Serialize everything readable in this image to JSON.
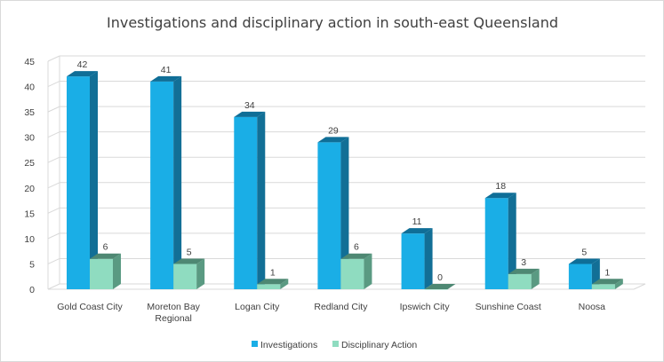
{
  "chart_data": {
    "type": "bar",
    "title": "Investigations and disciplinary action in south-east Queensland",
    "categories": [
      [
        "Gold Coast City"
      ],
      [
        "Moreton Bay",
        "Regional"
      ],
      [
        "Logan City"
      ],
      [
        "Redland City"
      ],
      [
        "Ipswich City"
      ],
      [
        "Sunshine Coast"
      ],
      [
        "Noosa"
      ]
    ],
    "series": [
      {
        "name": "Investigations",
        "values": [
          42,
          41,
          34,
          29,
          11,
          18,
          5
        ],
        "color": "#1aaee6",
        "side_color": "#126f96",
        "top_color": "#0f6e97"
      },
      {
        "name": "Disciplinary Action",
        "values": [
          6,
          5,
          1,
          6,
          0,
          3,
          1
        ],
        "color": "#8fdcc0",
        "side_color": "#5a9a82",
        "top_color": "#4e8873"
      }
    ],
    "ylim": [
      0,
      45
    ],
    "yticks": [
      0,
      5,
      10,
      15,
      20,
      25,
      30,
      35,
      40,
      45
    ],
    "grid": true,
    "legend": "bottom"
  }
}
